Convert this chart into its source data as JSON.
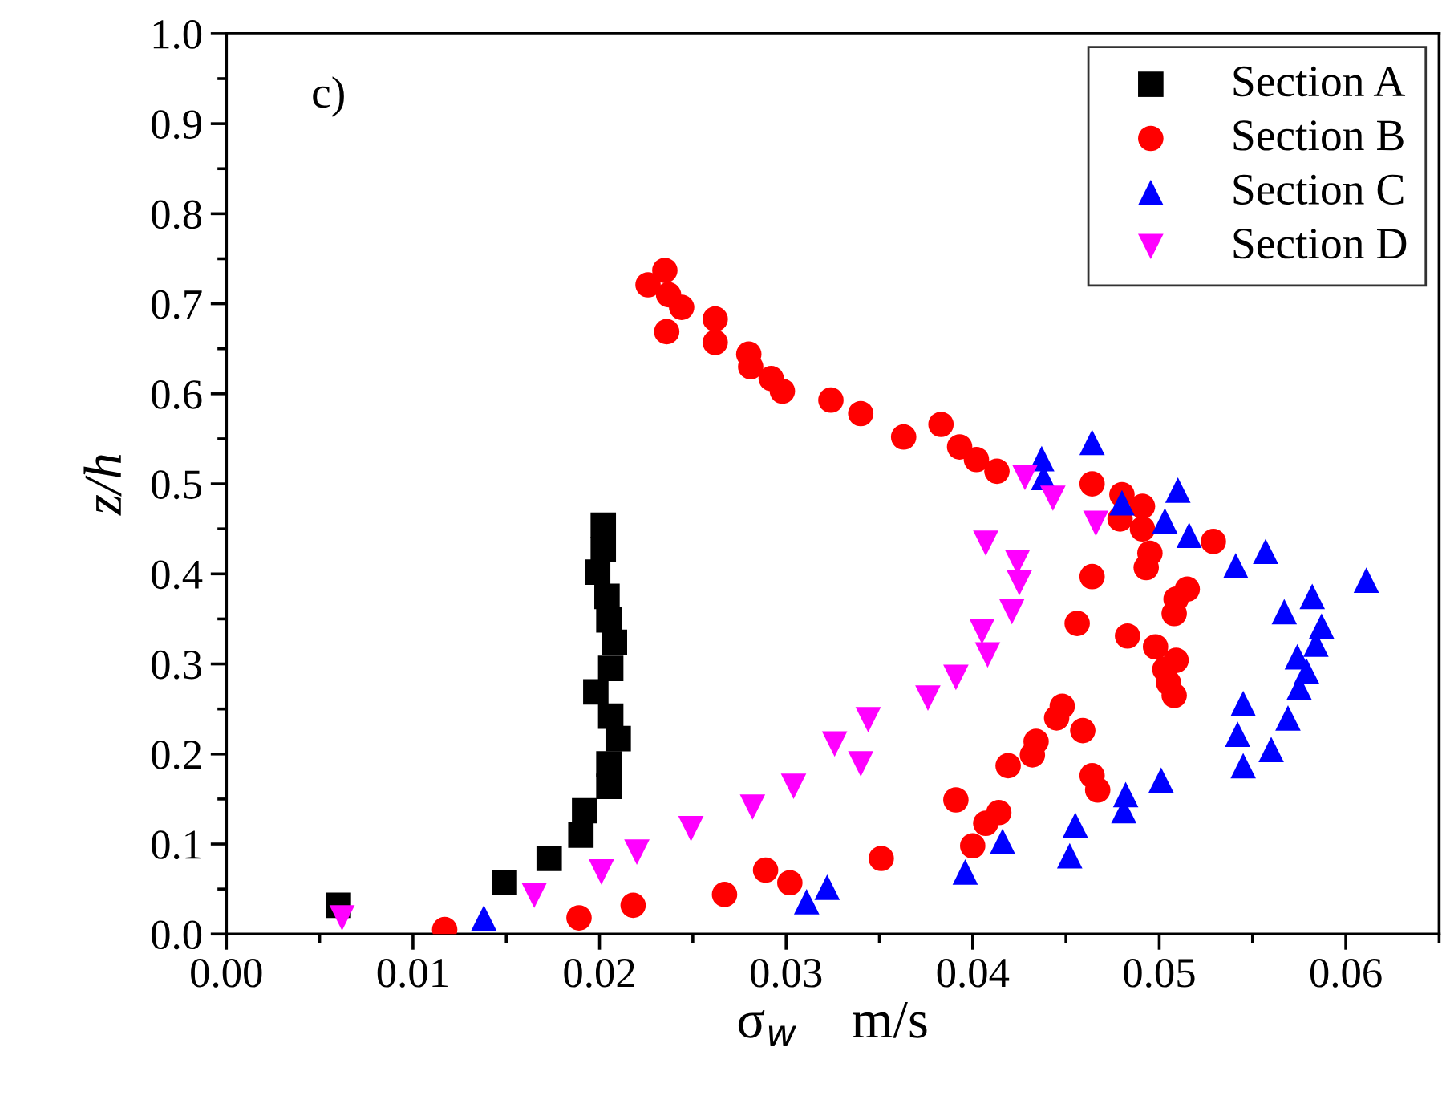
{
  "chart_data": {
    "type": "scatter",
    "xlabel": "σ$_{w}$    m/s",
    "ylabel": "z/h",
    "annotations": [
      "c)"
    ],
    "xlim": [
      0,
      0.065
    ],
    "ylim": [
      0,
      1.0
    ],
    "xticks": [
      {
        "value": 0,
        "label": "0.00"
      },
      {
        "value": 0.01,
        "label": "0.01"
      },
      {
        "value": 0.02,
        "label": "0.02"
      },
      {
        "value": 0.03,
        "label": "0.03"
      },
      {
        "value": 0.04,
        "label": "0.04"
      },
      {
        "value": 0.05,
        "label": "0.05"
      },
      {
        "value": 0.06,
        "label": "0.06"
      }
    ],
    "yticks": [
      {
        "value": 0,
        "label": "0.0"
      },
      0.1,
      0.2,
      0.3,
      0.4,
      0.5,
      0.6,
      0.7,
      0.8,
      0.9,
      {
        "value": 1,
        "label": "1.0"
      }
    ],
    "grid": false,
    "legend": "top right",
    "series": [
      {
        "name": "Section A",
        "color": "#000000",
        "marker": "square",
        "x": [
          0.0202,
          0.0202,
          0.0199,
          0.0204,
          0.0205,
          0.0208,
          0.0206,
          0.0198,
          0.0206,
          0.021,
          0.0205,
          0.0205,
          0.0192,
          0.019,
          0.0173,
          0.0149,
          0.006
        ],
        "values": [
          0.454,
          0.427,
          0.402,
          0.375,
          0.349,
          0.324,
          0.295,
          0.269,
          0.242,
          0.217,
          0.189,
          0.164,
          0.137,
          0.11,
          0.084,
          0.057,
          0.032
        ]
      },
      {
        "name": "Section B",
        "color": "#ff0000",
        "marker": "circle",
        "x": [
          0.0117,
          0.0189,
          0.0218,
          0.0267,
          0.0289,
          0.0302,
          0.0351,
          0.04,
          0.0407,
          0.0414,
          0.0391,
          0.0419,
          0.0432,
          0.0434,
          0.0467,
          0.0464,
          0.0459,
          0.0445,
          0.0448,
          0.0508,
          0.0505,
          0.0503,
          0.0509,
          0.0498,
          0.0483,
          0.0456,
          0.0508,
          0.0509,
          0.0515,
          0.0464,
          0.0493,
          0.0495,
          0.0529,
          0.0491,
          0.0479,
          0.0491,
          0.048,
          0.0464,
          0.0413,
          0.0402,
          0.0393,
          0.0383,
          0.0363,
          0.034,
          0.0324,
          0.0298,
          0.0292,
          0.0281,
          0.028,
          0.0262,
          0.0262,
          0.0244,
          0.0236,
          0.0237,
          0.0226,
          0.0235
        ],
        "values": [
          0.005,
          0.018,
          0.032,
          0.044,
          0.071,
          0.057,
          0.084,
          0.098,
          0.123,
          0.135,
          0.149,
          0.187,
          0.199,
          0.214,
          0.16,
          0.176,
          0.226,
          0.24,
          0.253,
          0.265,
          0.279,
          0.294,
          0.304,
          0.319,
          0.331,
          0.345,
          0.356,
          0.372,
          0.383,
          0.397,
          0.407,
          0.423,
          0.436,
          0.45,
          0.461,
          0.475,
          0.488,
          0.5,
          0.514,
          0.527,
          0.541,
          0.566,
          0.552,
          0.578,
          0.593,
          0.603,
          0.617,
          0.63,
          0.644,
          0.657,
          0.683,
          0.696,
          0.669,
          0.71,
          0.721,
          0.737
        ]
      },
      {
        "name": "Section C",
        "color": "#0000ff",
        "marker": "triangle",
        "x": [
          0.0138,
          0.0311,
          0.0322,
          0.0396,
          0.0416,
          0.0452,
          0.0455,
          0.0481,
          0.0482,
          0.0501,
          0.0545,
          0.056,
          0.0542,
          0.0569,
          0.0545,
          0.0575,
          0.0579,
          0.0574,
          0.0584,
          0.0587,
          0.0567,
          0.0582,
          0.0611,
          0.0541,
          0.0557,
          0.0516,
          0.0503,
          0.051,
          0.048,
          0.0464,
          0.0437,
          0.0438
        ],
        "values": [
          0.018,
          0.036,
          0.052,
          0.069,
          0.103,
          0.087,
          0.121,
          0.137,
          0.155,
          0.171,
          0.187,
          0.205,
          0.222,
          0.24,
          0.256,
          0.274,
          0.292,
          0.308,
          0.322,
          0.342,
          0.358,
          0.375,
          0.393,
          0.409,
          0.425,
          0.443,
          0.459,
          0.493,
          0.479,
          0.546,
          0.528,
          0.507
        ]
      },
      {
        "name": "Section D",
        "color": "#ff00ff",
        "marker": "triangle_down",
        "x": [
          0.0062,
          0.0165,
          0.0201,
          0.022,
          0.0249,
          0.0282,
          0.0304,
          0.034,
          0.0326,
          0.0344,
          0.0376,
          0.0391,
          0.0408,
          0.0405,
          0.0421,
          0.0425,
          0.0424,
          0.0407,
          0.0428,
          0.0443,
          0.0466
        ],
        "values": [
          0.018,
          0.043,
          0.069,
          0.091,
          0.117,
          0.141,
          0.164,
          0.189,
          0.211,
          0.238,
          0.262,
          0.285,
          0.31,
          0.336,
          0.358,
          0.39,
          0.413,
          0.434,
          0.507,
          0.484,
          0.456
        ]
      }
    ]
  }
}
